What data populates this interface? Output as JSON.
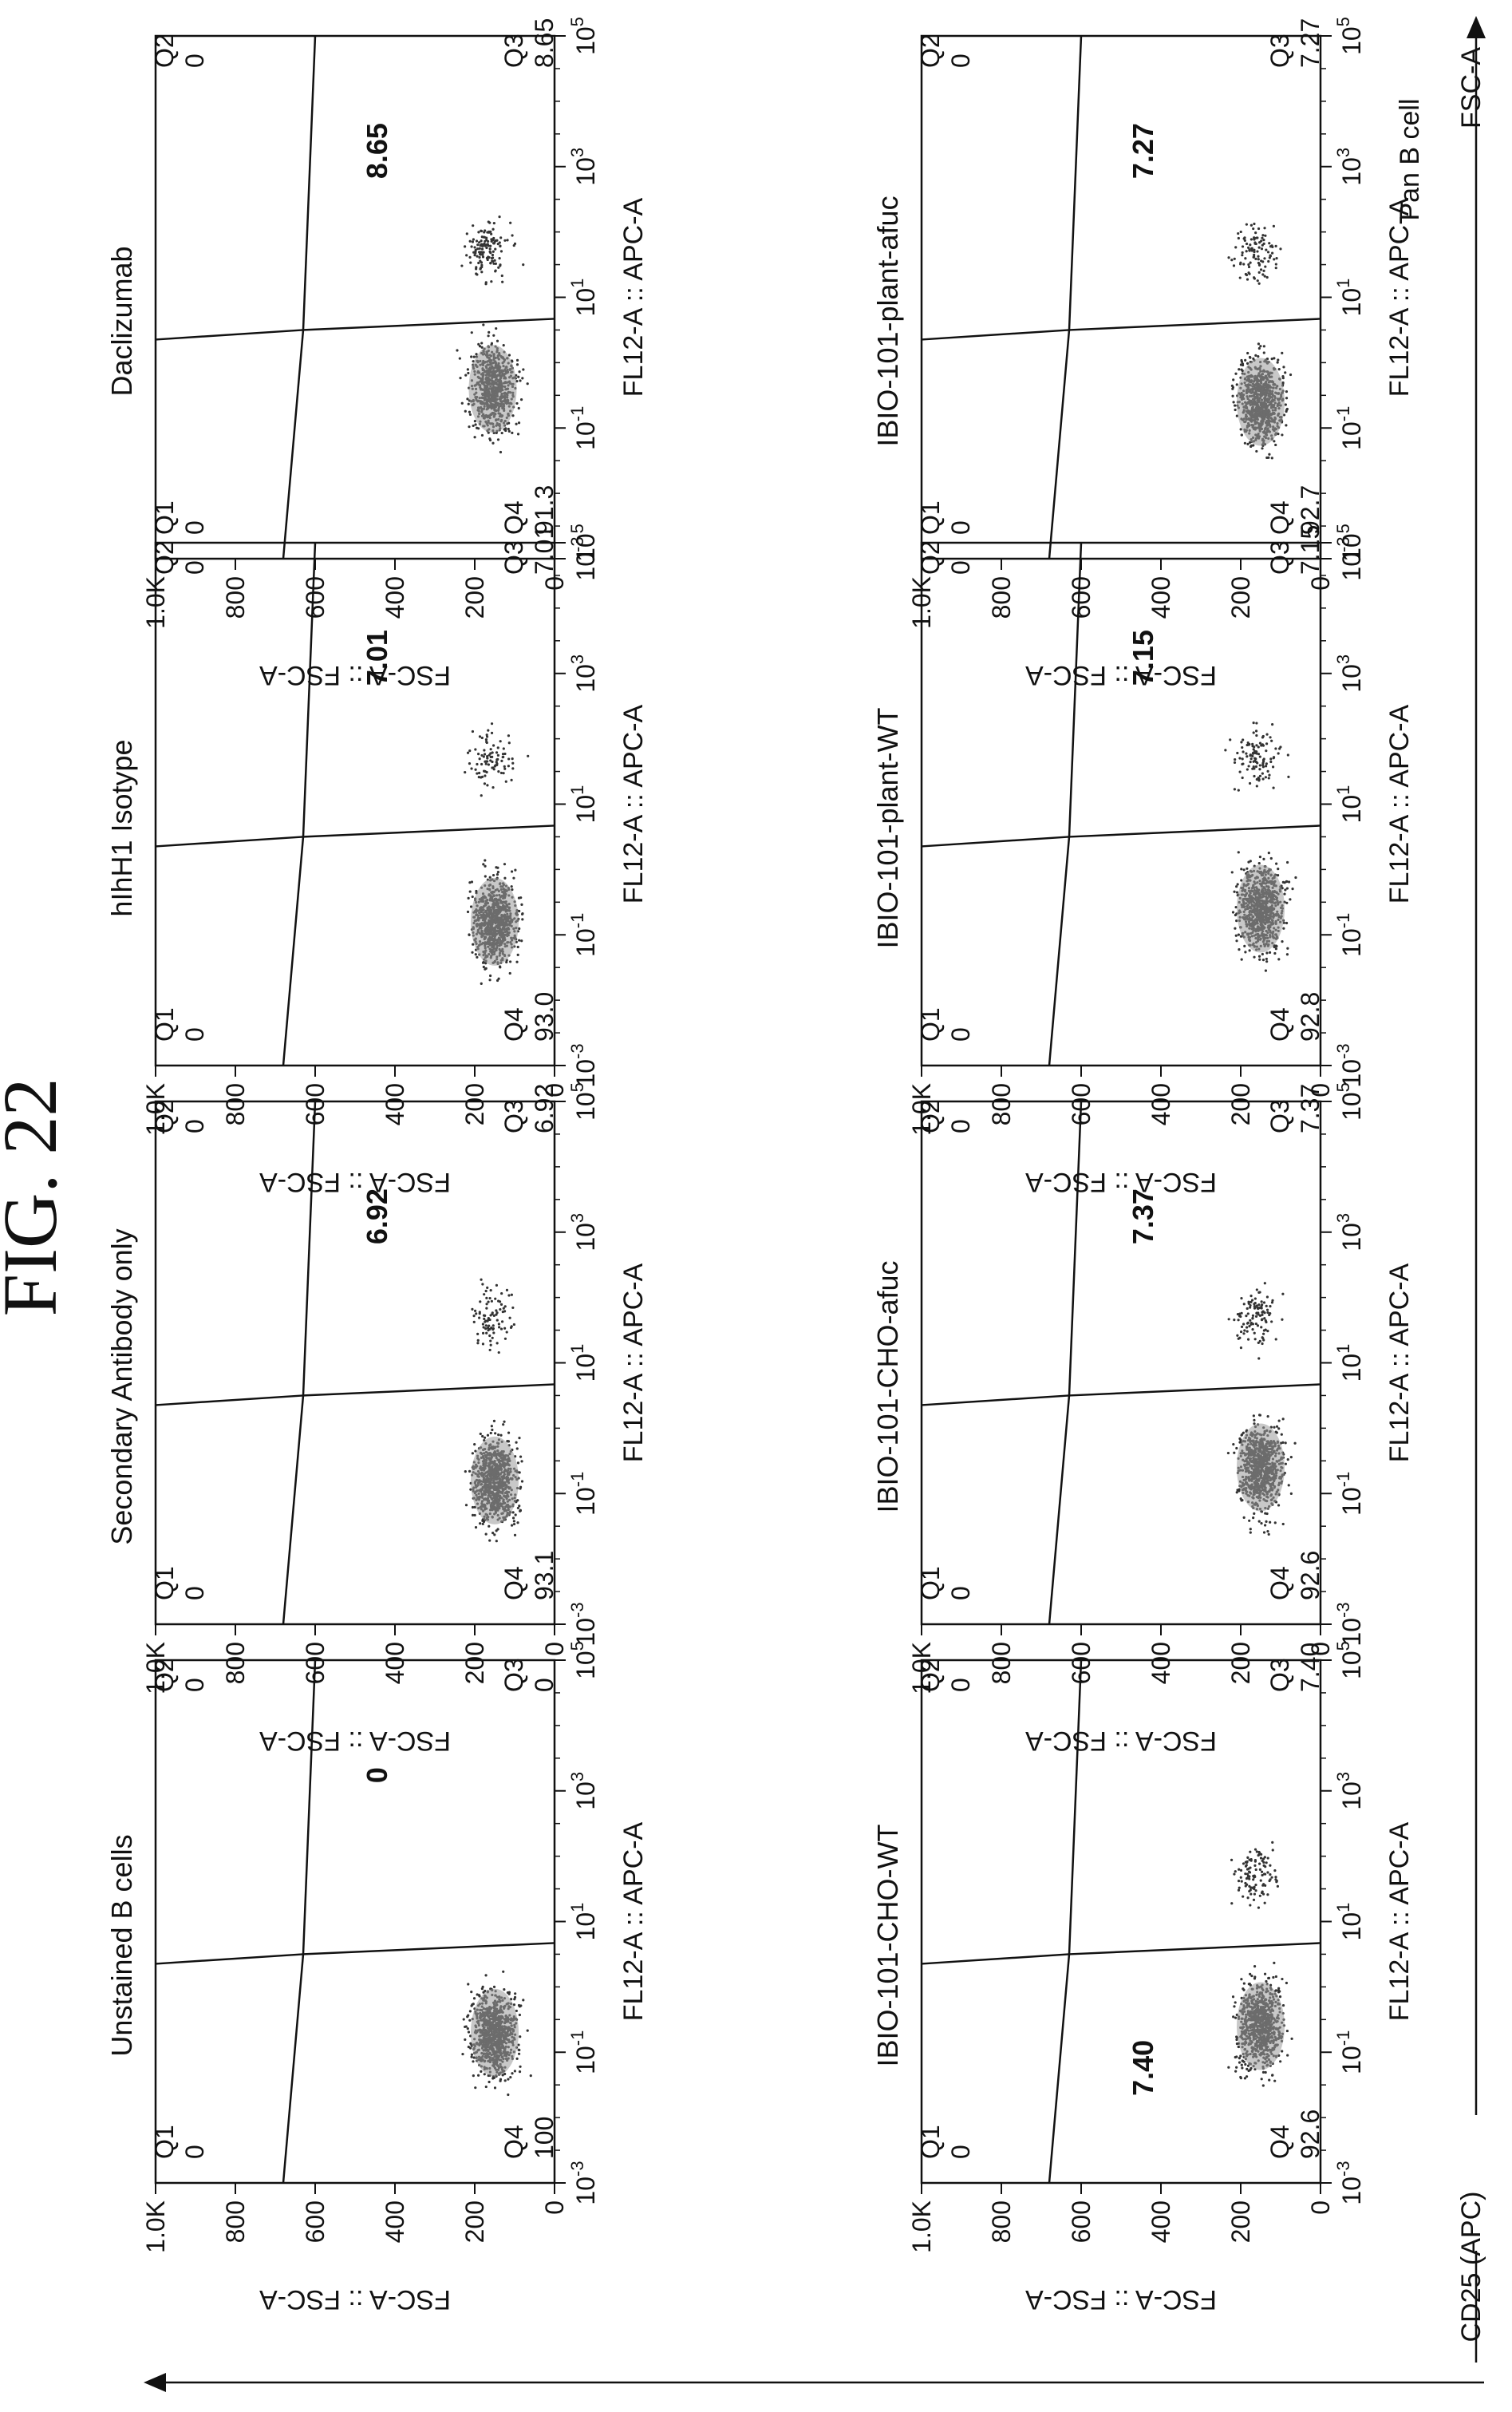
{
  "figure_title": "FIG. 22",
  "global_axes": {
    "horizontal_label": "CD25 (APC)",
    "vertical_label": "FSC-A",
    "vertical_sublabel": "Pan B cell"
  },
  "colors": {
    "ink": "#111111",
    "dots": "#333333",
    "dense_core": "#9a9a9a"
  },
  "chart_data": [
    {
      "type": "scatter",
      "title": "Unstained B cells",
      "xlabel": "FL12-A :: APC-A",
      "ylabel": "FSC-A :: FSC-A",
      "xticks": [
        "10^-3",
        "10^-1",
        "10^1",
        "10^3",
        "10^5"
      ],
      "yticks": [
        "0",
        "200",
        "400",
        "600",
        "800",
        "1.0K"
      ],
      "xlim": [
        -3,
        5
      ],
      "ylim": [
        0,
        1000
      ],
      "x_scale": "log",
      "quadrants": {
        "Q1": "0",
        "Q2": "0",
        "Q3": "0",
        "Q4": "100"
      },
      "gate_value": "0",
      "gate_label_side": "top",
      "populations": [
        {
          "x_log_center": -0.7,
          "y_center": 150,
          "weight": 1.0
        }
      ]
    },
    {
      "type": "scatter",
      "title": "Secondary Antibody only",
      "xlabel": "FL12-A :: APC-A",
      "ylabel": "FSC-A :: FSC-A",
      "xticks": [
        "10^-3",
        "10^-1",
        "10^1",
        "10^3",
        "10^5"
      ],
      "yticks": [
        "0",
        "200",
        "400",
        "600",
        "800",
        "1.0K"
      ],
      "xlim": [
        -3,
        5
      ],
      "ylim": [
        0,
        1000
      ],
      "x_scale": "log",
      "quadrants": {
        "Q1": "0",
        "Q2": "0",
        "Q3": "6.92",
        "Q4": "93.1"
      },
      "gate_value": "6.92",
      "gate_label_side": "top",
      "populations": [
        {
          "x_log_center": -0.8,
          "y_center": 150,
          "weight": 0.9
        },
        {
          "x_log_center": 1.7,
          "y_center": 160,
          "weight": 0.1
        }
      ]
    },
    {
      "type": "scatter",
      "title": "hIhH1 Isotype",
      "xlabel": "FL12-A :: APC-A",
      "ylabel": "FSC-A :: FSC-A",
      "xticks": [
        "10^-3",
        "10^-1",
        "10^1",
        "10^3",
        "10^5"
      ],
      "yticks": [
        "0",
        "200",
        "400",
        "600",
        "800",
        "1.0K"
      ],
      "xlim": [
        -3,
        5
      ],
      "ylim": [
        0,
        1000
      ],
      "x_scale": "log",
      "quadrants": {
        "Q1": "0",
        "Q2": "0",
        "Q3": "7.01",
        "Q4": "93.0"
      },
      "gate_value": "7.01",
      "gate_label_side": "top",
      "populations": [
        {
          "x_log_center": -0.8,
          "y_center": 150,
          "weight": 0.9
        },
        {
          "x_log_center": 1.7,
          "y_center": 160,
          "weight": 0.1
        }
      ]
    },
    {
      "type": "scatter",
      "title": "Daclizumab",
      "xlabel": "FL12-A :: APC-A",
      "ylabel": "FSC-A :: FSC-A",
      "xticks": [
        "10^-3",
        "10^-1",
        "10^1",
        "10^3",
        "10^5"
      ],
      "yticks": [
        "0",
        "200",
        "400",
        "600",
        "800",
        "1.0K"
      ],
      "xlim": [
        -3,
        5
      ],
      "ylim": [
        0,
        1000
      ],
      "x_scale": "log",
      "quadrants": {
        "Q1": "0",
        "Q2": "0",
        "Q3": "8.65",
        "Q4": "91.3"
      },
      "gate_value": "8.65",
      "gate_label_side": "top",
      "populations": [
        {
          "x_log_center": -0.4,
          "y_center": 155,
          "weight": 0.85
        },
        {
          "x_log_center": 1.7,
          "y_center": 170,
          "weight": 0.15
        }
      ]
    },
    {
      "type": "scatter",
      "title": "IBIO-101-CHO-WT",
      "xlabel": "FL12-A :: APC-A",
      "ylabel": "FSC-A :: FSC-A",
      "xticks": [
        "10^-3",
        "10^-1",
        "10^1",
        "10^3",
        "10^5"
      ],
      "yticks": [
        "0",
        "200",
        "400",
        "600",
        "800",
        "1.0K"
      ],
      "xlim": [
        -3,
        5
      ],
      "ylim": [
        0,
        1000
      ],
      "x_scale": "log",
      "quadrants": {
        "Q1": "0",
        "Q2": "0",
        "Q3": "7.40",
        "Q4": "92.6"
      },
      "gate_value": "7.40",
      "gate_label_side": "bottom",
      "populations": [
        {
          "x_log_center": -0.6,
          "y_center": 150,
          "weight": 0.88
        },
        {
          "x_log_center": 1.7,
          "y_center": 160,
          "weight": 0.12
        }
      ]
    },
    {
      "type": "scatter",
      "title": "IBIO-101-CHO-afuc",
      "xlabel": "FL12-A :: APC-A",
      "ylabel": "FSC-A :: FSC-A",
      "xticks": [
        "10^-3",
        "10^-1",
        "10^1",
        "10^3",
        "10^5"
      ],
      "yticks": [
        "0",
        "200",
        "400",
        "600",
        "800",
        "1.0K"
      ],
      "xlim": [
        -3,
        5
      ],
      "ylim": [
        0,
        1000
      ],
      "x_scale": "log",
      "quadrants": {
        "Q1": "0",
        "Q2": "0",
        "Q3": "7.37",
        "Q4": "92.6"
      },
      "gate_value": "7.37",
      "gate_label_side": "top",
      "populations": [
        {
          "x_log_center": -0.6,
          "y_center": 150,
          "weight": 0.88
        },
        {
          "x_log_center": 1.7,
          "y_center": 160,
          "weight": 0.12
        }
      ]
    },
    {
      "type": "scatter",
      "title": "IBIO-101-plant-WT",
      "xlabel": "FL12-A :: APC-A",
      "ylabel": "FSC-A :: FSC-A",
      "xticks": [
        "10^-3",
        "10^-1",
        "10^1",
        "10^3",
        "10^5"
      ],
      "yticks": [
        "0",
        "200",
        "400",
        "600",
        "800",
        "1.0K"
      ],
      "xlim": [
        -3,
        5
      ],
      "ylim": [
        0,
        1000
      ],
      "x_scale": "log",
      "quadrants": {
        "Q1": "0",
        "Q2": "0",
        "Q3": "7.15",
        "Q4": "92.8"
      },
      "gate_value": "7.15",
      "gate_label_side": "top",
      "populations": [
        {
          "x_log_center": -0.6,
          "y_center": 150,
          "weight": 0.88
        },
        {
          "x_log_center": 1.7,
          "y_center": 160,
          "weight": 0.12
        }
      ]
    },
    {
      "type": "scatter",
      "title": "IBIO-101-plant-afuc",
      "xlabel": "FL12-A :: APC-A",
      "ylabel": "FSC-A :: FSC-A",
      "xticks": [
        "10^-3",
        "10^-1",
        "10^1",
        "10^3",
        "10^5"
      ],
      "yticks": [
        "0",
        "200",
        "400",
        "600",
        "800",
        "1.0K"
      ],
      "xlim": [
        -3,
        5
      ],
      "ylim": [
        0,
        1000
      ],
      "x_scale": "log",
      "quadrants": {
        "Q1": "0",
        "Q2": "0",
        "Q3": "7.27",
        "Q4": "92.7"
      },
      "gate_value": "7.27",
      "gate_label_side": "top",
      "populations": [
        {
          "x_log_center": -0.6,
          "y_center": 150,
          "weight": 0.88
        },
        {
          "x_log_center": 1.7,
          "y_center": 160,
          "weight": 0.12
        }
      ]
    }
  ]
}
